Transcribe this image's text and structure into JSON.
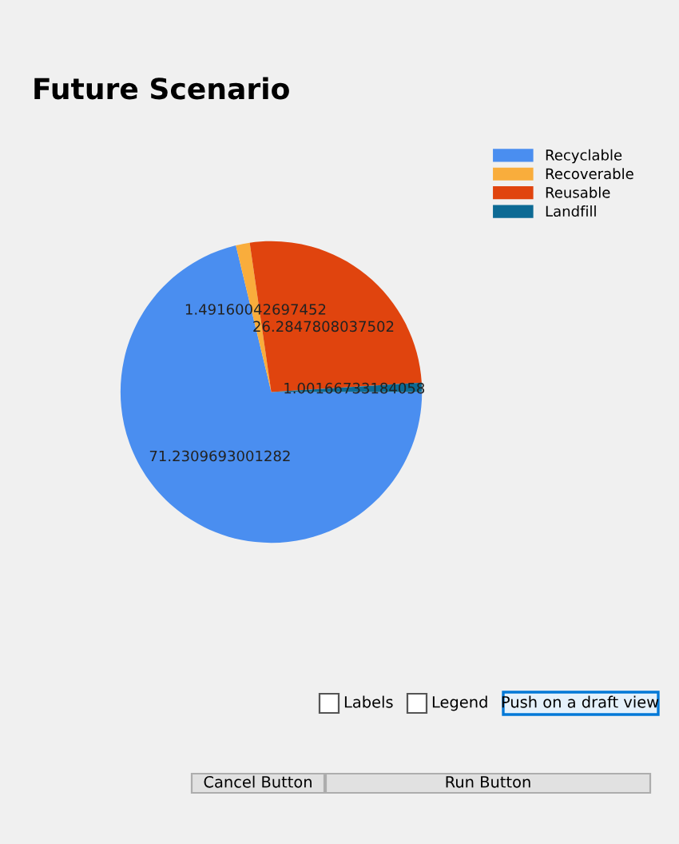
{
  "chart_data": {
    "type": "pie",
    "title": "Future Scenario",
    "categories": [
      "Recyclable",
      "Recoverable",
      "Reusable",
      "Landfill"
    ],
    "values": [
      71.2309693001282,
      1.49160042697452,
      26.2847808037502,
      1.00166733184058
    ],
    "colors": [
      "#4a8ef0",
      "#f9ad3c",
      "#e0440e",
      "#0d6a94"
    ],
    "data_labels": true,
    "legend": "top right",
    "annotations": [
      "Labels",
      "Legend",
      "Push on a draft view",
      "Cancel Button",
      "Run Button"
    ]
  }
}
